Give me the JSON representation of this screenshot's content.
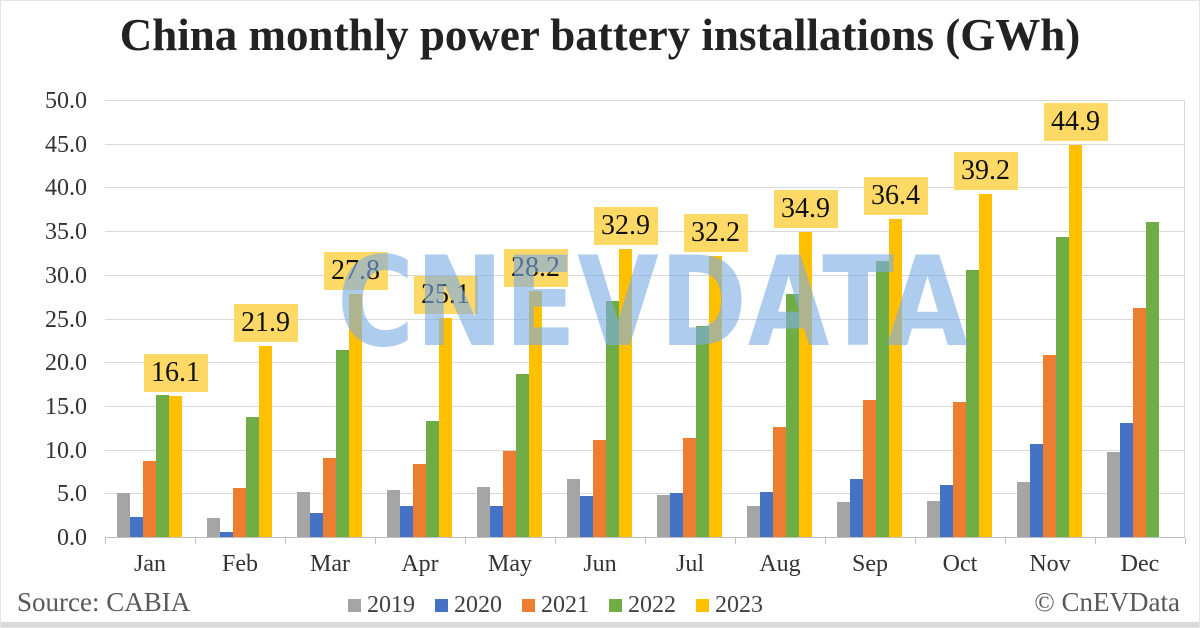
{
  "title": "China monthly power battery installations (GWh)",
  "watermark_text": "CNEVDATA",
  "footer": {
    "source": "Source: CABIA",
    "credit": "© CnEVData"
  },
  "colors": {
    "label_bg": "#FFD966",
    "watermark": "#7EADE4",
    "gridline": "#D9D9D9",
    "axis": "#BFBFBF",
    "bottom_strip": "#D9D9D9"
  },
  "chart_data": {
    "type": "bar",
    "title": "China monthly power battery installations (GWh)",
    "unit": "GWh",
    "categories": [
      "Jan",
      "Feb",
      "Mar",
      "Apr",
      "May",
      "Jun",
      "Jul",
      "Aug",
      "Sep",
      "Oct",
      "Nov",
      "Dec"
    ],
    "series": [
      {
        "name": "2019",
        "color": "#A5A5A5",
        "values": [
          5.0,
          2.2,
          5.1,
          5.4,
          5.7,
          6.6,
          4.8,
          3.5,
          4.0,
          4.1,
          6.3,
          9.7
        ]
      },
      {
        "name": "2020",
        "color": "#4472C4",
        "values": [
          2.3,
          0.6,
          2.8,
          3.6,
          3.5,
          4.7,
          5.0,
          5.1,
          6.6,
          5.9,
          10.6,
          13.1
        ]
      },
      {
        "name": "2021",
        "color": "#ED7D31",
        "values": [
          8.7,
          5.6,
          9.0,
          8.4,
          9.8,
          11.1,
          11.3,
          12.6,
          15.7,
          15.4,
          20.8,
          26.2
        ]
      },
      {
        "name": "2022",
        "color": "#70AD47",
        "values": [
          16.2,
          13.7,
          21.4,
          13.3,
          18.6,
          27.0,
          24.2,
          27.8,
          31.6,
          30.5,
          34.3,
          36.1
        ]
      },
      {
        "name": "2023",
        "color": "#FFC000",
        "values": [
          16.1,
          21.9,
          27.8,
          25.1,
          28.2,
          32.9,
          32.2,
          34.9,
          36.4,
          39.2,
          44.9,
          null
        ],
        "show_data_labels": true
      }
    ],
    "data_labels_2023": [
      "16.1",
      "21.9",
      "27.8",
      "25.1",
      "28.2",
      "32.9",
      "32.2",
      "34.9",
      "36.4",
      "39.2",
      "44.9"
    ],
    "ylim": [
      0,
      50
    ],
    "ytick_step": 5,
    "ytick_labels": [
      "0.0",
      "5.0",
      "10.0",
      "15.0",
      "20.0",
      "25.0",
      "30.0",
      "35.0",
      "40.0",
      "45.0",
      "50.0"
    ],
    "grid": true,
    "legend_position": "bottom"
  }
}
